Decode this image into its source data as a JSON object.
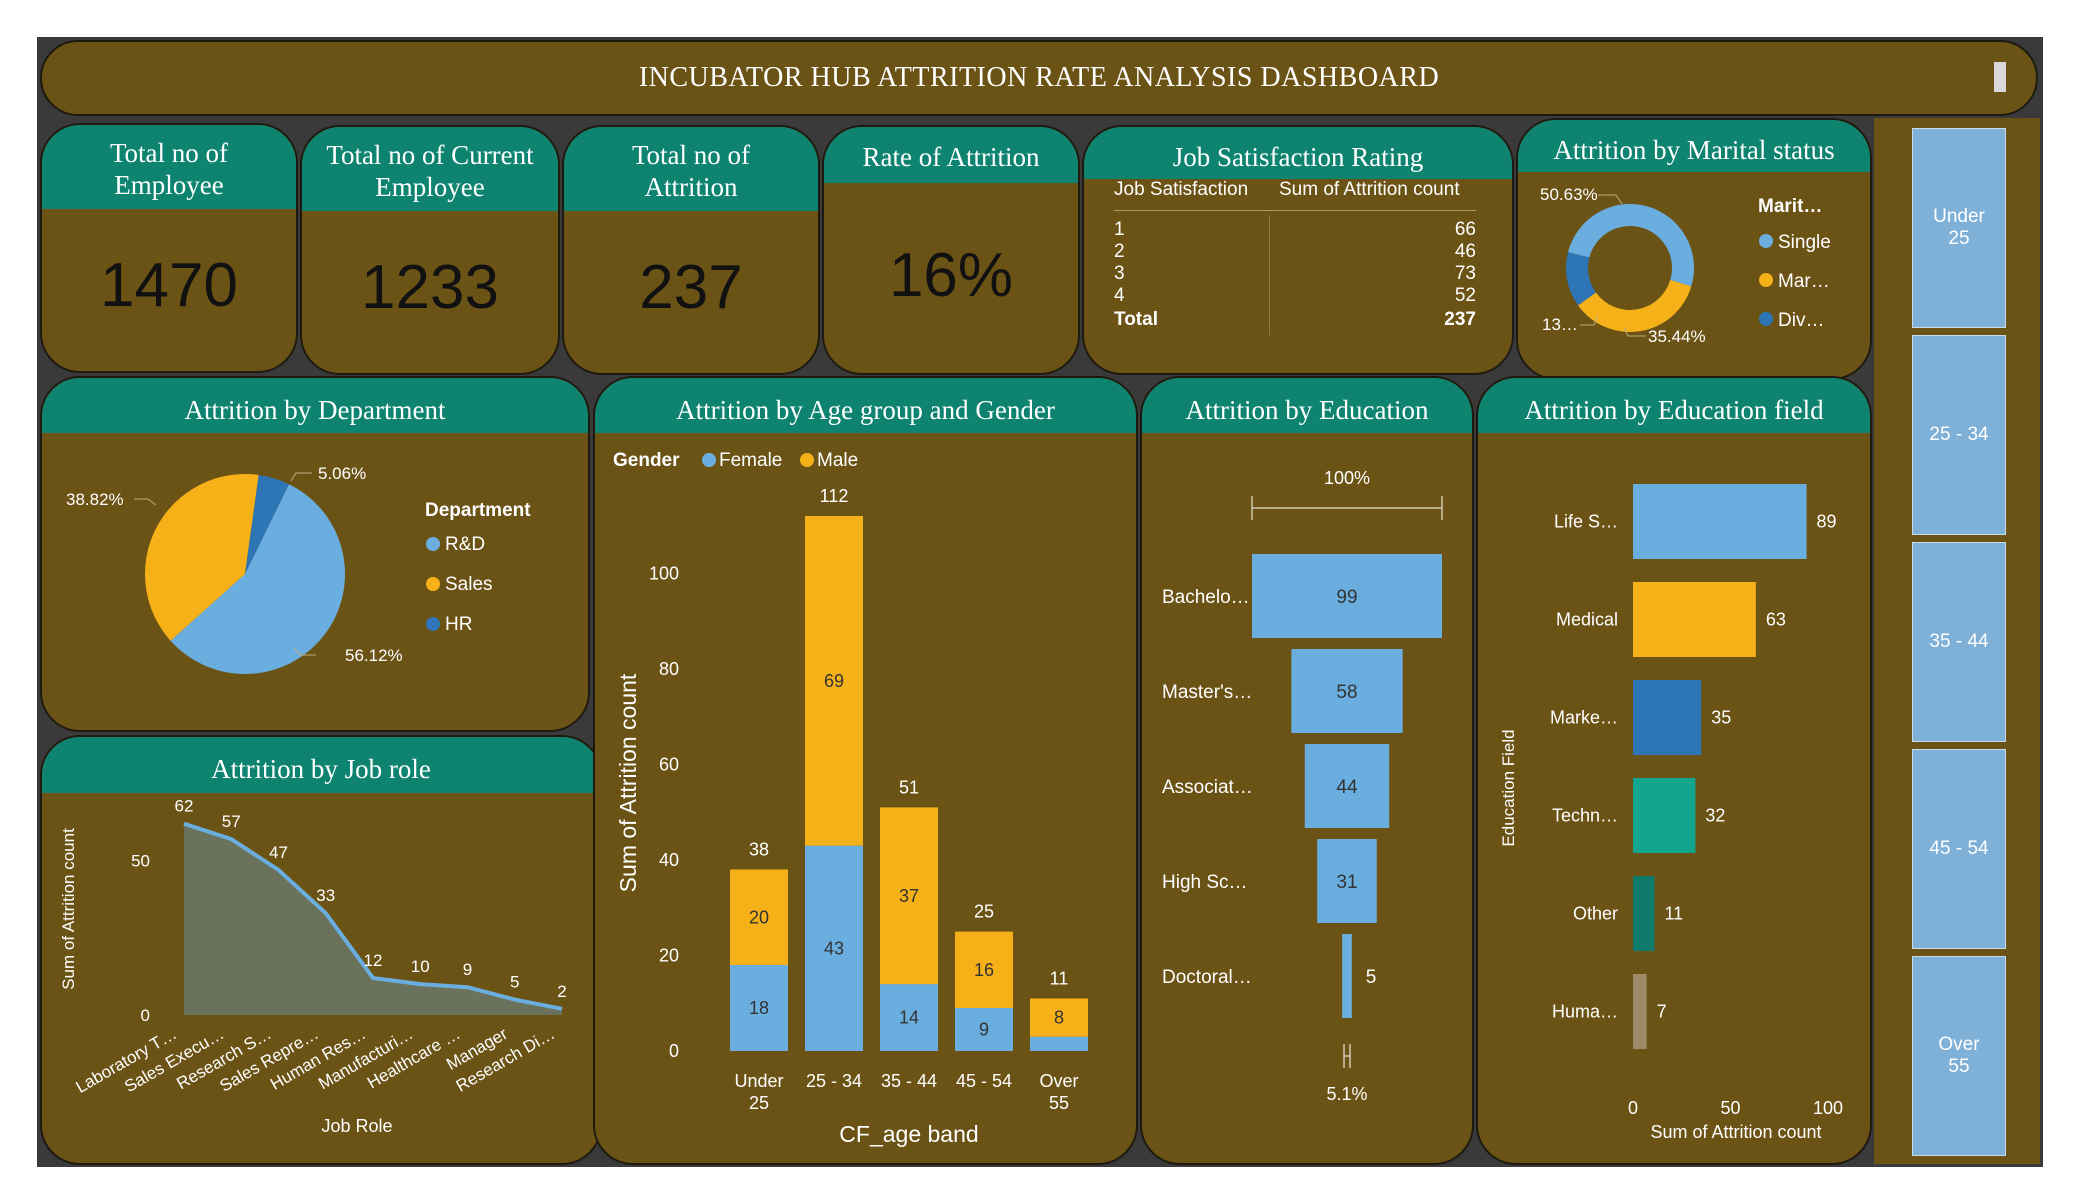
{
  "title": "INCUBATOR HUB ATTRITION RATE ANALYSIS DASHBOARD",
  "colors": {
    "panel": "#6b5316",
    "header": "#0e8470",
    "blue": "#6aaedf",
    "gold": "#f5b117",
    "darkblue": "#2e75b6",
    "teal": "#13a68f",
    "darkteal": "#0f7b6a",
    "tan": "#a08a6a"
  },
  "kpis": [
    {
      "label": "Total no of Employee",
      "value": "1470"
    },
    {
      "label": "Total no of Current Employee",
      "value": "1233"
    },
    {
      "label": "Total no of Attrition",
      "value": "237"
    },
    {
      "label": "Rate of Attrition",
      "value": "16%"
    }
  ],
  "job_satisfaction": {
    "title": "Job Satisfaction Rating",
    "col1": "Job Satisfaction",
    "col2": "Sum of Attrition count",
    "rows": [
      {
        "k": "1",
        "v": "66"
      },
      {
        "k": "2",
        "v": "46"
      },
      {
        "k": "3",
        "v": "73"
      },
      {
        "k": "4",
        "v": "52"
      }
    ],
    "total_label": "Total",
    "total_value": "237"
  },
  "marital": {
    "title": "Attrition by Marital status"
  },
  "department": {
    "title": "Attrition by Department"
  },
  "jobrole": {
    "title": "Attrition by Job role"
  },
  "agegender": {
    "title": "Attrition by Age group and Gender"
  },
  "education": {
    "title": "Attrition by Education"
  },
  "edufield": {
    "title": "Attrition by Education field"
  },
  "slicer": [
    "Under 25",
    "25 - 34",
    "35 - 44",
    "45 - 54",
    "Over 55"
  ],
  "chart_data": [
    {
      "id": "marital",
      "type": "pie",
      "donut": true,
      "legend_title": "Marit…",
      "categories": [
        "Single",
        "Mar…",
        "Div…"
      ],
      "values": [
        50.63,
        35.44,
        13.92
      ],
      "labels": [
        "50.63%",
        "35.44%",
        "13…"
      ]
    },
    {
      "id": "department",
      "type": "pie",
      "legend_title": "Department",
      "categories": [
        "R&D",
        "Sales",
        "HR"
      ],
      "values": [
        56.12,
        38.82,
        5.06
      ],
      "labels": [
        "56.12%",
        "38.82%",
        "5.06%"
      ]
    },
    {
      "id": "jobrole",
      "type": "area",
      "xlabel": "Job Role",
      "ylabel": "Sum of Attrition count",
      "categories": [
        "Laboratory T…",
        "Sales Execu…",
        "Research S…",
        "Sales Repre…",
        "Human Res…",
        "Manufacturi…",
        "Healthcare …",
        "Manager",
        "Research Di…"
      ],
      "values": [
        62,
        57,
        47,
        33,
        12,
        10,
        9,
        5,
        2
      ],
      "yticks": [
        "0",
        "50"
      ],
      "ylim": [
        0,
        70
      ]
    },
    {
      "id": "agegender",
      "type": "bar",
      "stacked": true,
      "legend_title": "Gender",
      "xlabel": "CF_age band",
      "ylabel": "Sum of Attrition count",
      "categories": [
        "Under 25",
        "25 - 34",
        "35 - 44",
        "45 - 54",
        "Over 55"
      ],
      "series": [
        {
          "name": "Female",
          "values": [
            18,
            43,
            14,
            9,
            3
          ]
        },
        {
          "name": "Male",
          "values": [
            20,
            69,
            37,
            16,
            8
          ]
        }
      ],
      "seg_labels": {
        "Female": [
          "18",
          "43",
          "14",
          "9",
          ""
        ],
        "Male": [
          "20",
          "69",
          "37",
          "16",
          "8"
        ]
      },
      "totals": [
        "38",
        "112",
        "51",
        "25",
        "11"
      ],
      "yticks": [
        "0",
        "20",
        "40",
        "60",
        "80",
        "100"
      ],
      "ylim": [
        0,
        112
      ]
    },
    {
      "id": "education",
      "type": "bar",
      "funnel": true,
      "categories": [
        "Bachelo…",
        "Master's…",
        "Associat…",
        "High Sc…",
        "Doctoral…"
      ],
      "values": [
        99,
        58,
        44,
        31,
        5
      ],
      "top_label": "100%",
      "bottom_label": "5.1%"
    },
    {
      "id": "edufield",
      "type": "bar",
      "orientation": "horizontal",
      "xlabel": "Sum of Attrition count",
      "ylabel": "Education Field",
      "categories": [
        "Life S…",
        "Medical",
        "Marke…",
        "Techn…",
        "Other",
        "Huma…"
      ],
      "values": [
        89,
        63,
        35,
        32,
        11,
        7
      ],
      "xticks": [
        "0",
        "50",
        "100"
      ],
      "xlim": [
        0,
        100
      ]
    }
  ]
}
